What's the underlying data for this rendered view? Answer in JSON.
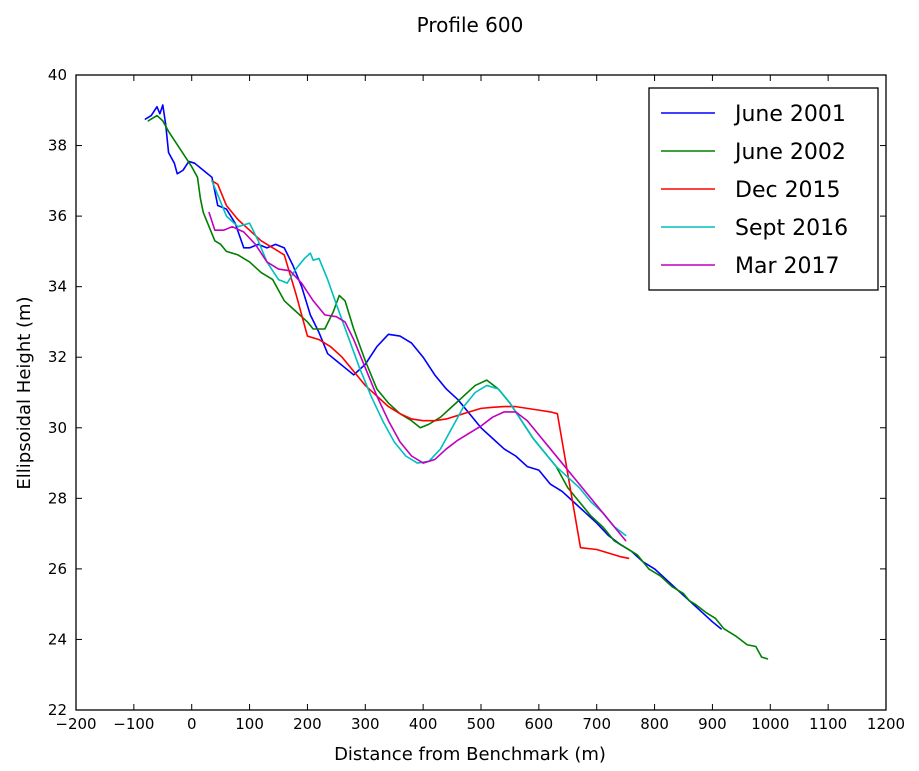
{
  "chart_data": {
    "type": "line",
    "title": "Profile 600",
    "xlabel": "Distance from Benchmark (m)",
    "ylabel": "Ellipsoidal Height (m)",
    "xlim": [
      -200,
      1200
    ],
    "ylim": [
      22,
      40
    ],
    "xticks": [
      -200,
      -100,
      0,
      100,
      200,
      300,
      400,
      500,
      600,
      700,
      800,
      900,
      1000,
      1100,
      1200
    ],
    "yticks": [
      22,
      24,
      26,
      28,
      30,
      32,
      34,
      36,
      38,
      40
    ],
    "grid": false,
    "legend_position": "top-right",
    "series": [
      {
        "name": "June 2001",
        "color": "#0000ff",
        "points": [
          [
            -80,
            38.75
          ],
          [
            -70,
            38.85
          ],
          [
            -60,
            39.1
          ],
          [
            -55,
            38.9
          ],
          [
            -50,
            39.15
          ],
          [
            -45,
            38.6
          ],
          [
            -40,
            37.8
          ],
          [
            -30,
            37.5
          ],
          [
            -25,
            37.2
          ],
          [
            -15,
            37.3
          ],
          [
            -5,
            37.55
          ],
          [
            5,
            37.5
          ],
          [
            20,
            37.3
          ],
          [
            35,
            37.1
          ],
          [
            45,
            36.3
          ],
          [
            60,
            36.2
          ],
          [
            75,
            35.8
          ],
          [
            90,
            35.1
          ],
          [
            100,
            35.1
          ],
          [
            115,
            35.2
          ],
          [
            130,
            35.1
          ],
          [
            145,
            35.2
          ],
          [
            160,
            35.1
          ],
          [
            175,
            34.6
          ],
          [
            190,
            34.0
          ],
          [
            205,
            33.2
          ],
          [
            220,
            32.7
          ],
          [
            235,
            32.1
          ],
          [
            250,
            31.9
          ],
          [
            265,
            31.7
          ],
          [
            280,
            31.5
          ],
          [
            300,
            31.8
          ],
          [
            320,
            32.3
          ],
          [
            340,
            32.65
          ],
          [
            360,
            32.6
          ],
          [
            380,
            32.4
          ],
          [
            400,
            32.0
          ],
          [
            420,
            31.5
          ],
          [
            440,
            31.1
          ],
          [
            460,
            30.8
          ],
          [
            480,
            30.4
          ],
          [
            500,
            30.0
          ],
          [
            520,
            29.7
          ],
          [
            540,
            29.4
          ],
          [
            560,
            29.2
          ],
          [
            580,
            28.9
          ],
          [
            600,
            28.8
          ],
          [
            620,
            28.4
          ],
          [
            640,
            28.2
          ],
          [
            660,
            27.9
          ],
          [
            680,
            27.6
          ],
          [
            700,
            27.3
          ],
          [
            720,
            26.95
          ],
          [
            740,
            26.7
          ],
          [
            760,
            26.5
          ],
          [
            780,
            26.2
          ],
          [
            800,
            26.0
          ],
          [
            820,
            25.7
          ],
          [
            840,
            25.4
          ],
          [
            860,
            25.1
          ],
          [
            880,
            24.8
          ],
          [
            900,
            24.5
          ],
          [
            915,
            24.3
          ]
        ]
      },
      {
        "name": "June 2002",
        "color": "#008000",
        "points": [
          [
            -75,
            38.7
          ],
          [
            -60,
            38.85
          ],
          [
            -50,
            38.7
          ],
          [
            -40,
            38.4
          ],
          [
            -20,
            37.9
          ],
          [
            0,
            37.4
          ],
          [
            10,
            37.1
          ],
          [
            15,
            36.5
          ],
          [
            20,
            36.1
          ],
          [
            30,
            35.7
          ],
          [
            40,
            35.3
          ],
          [
            50,
            35.2
          ],
          [
            60,
            35.0
          ],
          [
            80,
            34.9
          ],
          [
            100,
            34.7
          ],
          [
            120,
            34.4
          ],
          [
            140,
            34.2
          ],
          [
            160,
            33.6
          ],
          [
            180,
            33.3
          ],
          [
            200,
            33.0
          ],
          [
            210,
            32.8
          ],
          [
            230,
            32.8
          ],
          [
            245,
            33.3
          ],
          [
            255,
            33.75
          ],
          [
            265,
            33.6
          ],
          [
            280,
            32.8
          ],
          [
            300,
            31.9
          ],
          [
            320,
            31.1
          ],
          [
            340,
            30.7
          ],
          [
            360,
            30.4
          ],
          [
            380,
            30.2
          ],
          [
            395,
            30.0
          ],
          [
            410,
            30.1
          ],
          [
            430,
            30.3
          ],
          [
            450,
            30.6
          ],
          [
            470,
            30.9
          ],
          [
            490,
            31.2
          ],
          [
            510,
            31.35
          ],
          [
            530,
            31.1
          ],
          [
            550,
            30.7
          ],
          [
            570,
            30.2
          ],
          [
            590,
            29.7
          ],
          [
            610,
            29.3
          ],
          [
            630,
            28.9
          ],
          [
            650,
            28.3
          ],
          [
            670,
            27.9
          ],
          [
            690,
            27.5
          ],
          [
            710,
            27.2
          ],
          [
            730,
            26.8
          ],
          [
            750,
            26.6
          ],
          [
            770,
            26.4
          ],
          [
            790,
            26.0
          ],
          [
            810,
            25.8
          ],
          [
            830,
            25.5
          ],
          [
            850,
            25.3
          ],
          [
            860,
            25.1
          ],
          [
            870,
            25.0
          ],
          [
            890,
            24.75
          ],
          [
            905,
            24.6
          ],
          [
            920,
            24.3
          ],
          [
            940,
            24.1
          ],
          [
            960,
            23.85
          ],
          [
            975,
            23.8
          ],
          [
            985,
            23.5
          ],
          [
            995,
            23.45
          ]
        ]
      },
      {
        "name": "Dec 2015",
        "color": "#ff0000",
        "points": [
          [
            35,
            37.0
          ],
          [
            45,
            36.9
          ],
          [
            60,
            36.3
          ],
          [
            80,
            35.9
          ],
          [
            100,
            35.6
          ],
          [
            120,
            35.3
          ],
          [
            140,
            35.1
          ],
          [
            160,
            34.9
          ],
          [
            180,
            33.8
          ],
          [
            200,
            32.6
          ],
          [
            220,
            32.5
          ],
          [
            240,
            32.3
          ],
          [
            260,
            32.0
          ],
          [
            280,
            31.6
          ],
          [
            300,
            31.2
          ],
          [
            320,
            30.9
          ],
          [
            340,
            30.6
          ],
          [
            360,
            30.4
          ],
          [
            380,
            30.25
          ],
          [
            400,
            30.2
          ],
          [
            420,
            30.2
          ],
          [
            440,
            30.25
          ],
          [
            460,
            30.35
          ],
          [
            480,
            30.45
          ],
          [
            500,
            30.55
          ],
          [
            520,
            30.58
          ],
          [
            540,
            30.6
          ],
          [
            560,
            30.6
          ],
          [
            580,
            30.55
          ],
          [
            600,
            30.5
          ],
          [
            620,
            30.45
          ],
          [
            632,
            30.4
          ],
          [
            672,
            26.6
          ],
          [
            700,
            26.55
          ],
          [
            720,
            26.45
          ],
          [
            740,
            26.35
          ],
          [
            755,
            26.3
          ]
        ]
      },
      {
        "name": "Sept 2016",
        "color": "#00bfbf",
        "points": [
          [
            35,
            37.0
          ],
          [
            45,
            36.6
          ],
          [
            60,
            36.0
          ],
          [
            80,
            35.7
          ],
          [
            100,
            35.8
          ],
          [
            115,
            35.3
          ],
          [
            130,
            34.7
          ],
          [
            150,
            34.2
          ],
          [
            165,
            34.1
          ],
          [
            180,
            34.5
          ],
          [
            195,
            34.8
          ],
          [
            205,
            34.95
          ],
          [
            210,
            34.75
          ],
          [
            220,
            34.8
          ],
          [
            235,
            34.2
          ],
          [
            250,
            33.5
          ],
          [
            270,
            32.6
          ],
          [
            290,
            31.7
          ],
          [
            310,
            30.9
          ],
          [
            330,
            30.2
          ],
          [
            350,
            29.6
          ],
          [
            370,
            29.2
          ],
          [
            390,
            29.0
          ],
          [
            410,
            29.05
          ],
          [
            430,
            29.4
          ],
          [
            450,
            30.0
          ],
          [
            470,
            30.6
          ],
          [
            490,
            31.0
          ],
          [
            510,
            31.2
          ],
          [
            530,
            31.1
          ],
          [
            550,
            30.7
          ],
          [
            570,
            30.2
          ],
          [
            590,
            29.7
          ],
          [
            610,
            29.3
          ],
          [
            630,
            28.9
          ],
          [
            650,
            28.6
          ],
          [
            670,
            28.3
          ],
          [
            690,
            27.9
          ],
          [
            710,
            27.6
          ],
          [
            730,
            27.2
          ],
          [
            750,
            26.95
          ]
        ]
      },
      {
        "name": "Mar 2017",
        "color": "#bf00bf",
        "points": [
          [
            30,
            36.1
          ],
          [
            40,
            35.6
          ],
          [
            55,
            35.6
          ],
          [
            70,
            35.7
          ],
          [
            90,
            35.55
          ],
          [
            110,
            35.2
          ],
          [
            130,
            34.7
          ],
          [
            150,
            34.5
          ],
          [
            170,
            34.45
          ],
          [
            190,
            34.1
          ],
          [
            210,
            33.6
          ],
          [
            230,
            33.2
          ],
          [
            250,
            33.15
          ],
          [
            265,
            33.0
          ],
          [
            280,
            32.5
          ],
          [
            300,
            31.7
          ],
          [
            320,
            30.9
          ],
          [
            340,
            30.2
          ],
          [
            360,
            29.6
          ],
          [
            380,
            29.2
          ],
          [
            400,
            29.0
          ],
          [
            420,
            29.1
          ],
          [
            440,
            29.4
          ],
          [
            460,
            29.65
          ],
          [
            480,
            29.85
          ],
          [
            500,
            30.05
          ],
          [
            520,
            30.3
          ],
          [
            540,
            30.45
          ],
          [
            560,
            30.45
          ],
          [
            580,
            30.2
          ],
          [
            600,
            29.8
          ],
          [
            620,
            29.4
          ],
          [
            640,
            29.0
          ],
          [
            660,
            28.6
          ],
          [
            680,
            28.2
          ],
          [
            700,
            27.8
          ],
          [
            720,
            27.4
          ],
          [
            740,
            27.0
          ],
          [
            750,
            26.8
          ]
        ]
      }
    ]
  }
}
